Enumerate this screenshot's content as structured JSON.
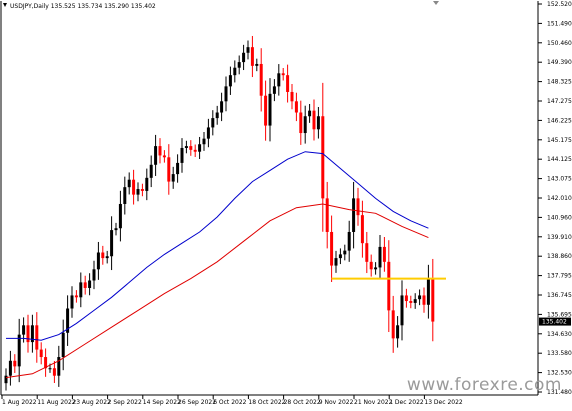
{
  "window": {
    "symbol_info": "USDJPY,Daily  135.525 135.734 135.290 135.402"
  },
  "watermark": "www.forexre.com",
  "chart_data": {
    "type": "candlestick",
    "title": "USDJPY,Daily",
    "ohlc_header": [
      "135.525",
      "135.734",
      "135.290",
      "135.402"
    ],
    "ylim": [
      131.52,
      152.52
    ],
    "y_ticks": [
      "152.520",
      "151.490",
      "150.460",
      "149.390",
      "148.325",
      "147.275",
      "146.225",
      "145.175",
      "144.125",
      "143.075",
      "142.010",
      "140.960",
      "139.910",
      "138.860",
      "137.795",
      "136.745",
      "135.695",
      "134.630",
      "133.580",
      "132.530",
      "131.480"
    ],
    "x_ticks": [
      "1 Aug 2022",
      "11 Aug 2022",
      "23 Aug 2022",
      "2 Sep 2022",
      "14 Sep 2022",
      "26 Sep 2022",
      "6 Oct 2022",
      "18 Oct 2022",
      "28 Oct 2022",
      "9 Nov 2022",
      "21 Nov 2022",
      "1 Dec 2022",
      "13 Dec 2022"
    ],
    "x_tick_index": [
      0,
      8,
      16,
      24,
      32,
      40,
      48,
      56,
      64,
      72,
      80,
      88,
      96
    ],
    "current_price": "135.402",
    "support_level": 137.7,
    "up_color": "#000000",
    "down_color": "#ff0000",
    "ma_fast_color": "#0000cc",
    "ma_slow_color": "#e00000",
    "level_color": "#ffcc00",
    "closes": [
      132.5,
      133.3,
      133.0,
      134.7,
      135.2,
      134.3,
      135.2,
      133.9,
      133.5,
      132.9,
      132.9,
      132.5,
      133.5,
      134.8,
      136.1,
      136.8,
      136.7,
      137.5,
      137.2,
      137.6,
      138.2,
      139.1,
      138.8,
      138.9,
      140.3,
      140.4,
      141.7,
      142.6,
      143.0,
      142.2,
      142.5,
      142.4,
      143.1,
      143.8,
      144.8,
      144.3,
      144.2,
      142.9,
      143.3,
      143.9,
      144.7,
      144.8,
      144.6,
      144.5,
      144.9,
      145.2,
      145.8,
      146.3,
      146.6,
      147.2,
      148.0,
      148.6,
      149.0,
      149.3,
      149.8,
      150.1,
      149.1,
      149.2,
      147.5,
      145.9,
      147.6,
      148.0,
      148.7,
      148.6,
      147.7,
      147.2,
      146.6,
      145.5,
      146.4,
      146.7,
      145.7,
      146.4,
      142.0,
      140.2,
      138.4,
      138.8,
      139.0,
      139.2,
      140.2,
      142.0,
      141.1,
      139.6,
      138.6,
      138.2,
      138.3,
      139.4,
      138.6,
      136.0,
      134.5,
      135.2,
      136.8,
      136.5,
      136.4,
      136.6,
      136.8,
      136.3,
      137.7,
      135.4
    ],
    "ma_fast": [
      {
        "i": 0,
        "v": 134.5
      },
      {
        "i": 4,
        "v": 134.5
      },
      {
        "i": 8,
        "v": 134.4
      },
      {
        "i": 12,
        "v": 134.7
      },
      {
        "i": 16,
        "v": 135.3
      },
      {
        "i": 20,
        "v": 136.0
      },
      {
        "i": 24,
        "v": 136.7
      },
      {
        "i": 28,
        "v": 137.5
      },
      {
        "i": 32,
        "v": 138.3
      },
      {
        "i": 36,
        "v": 139.0
      },
      {
        "i": 40,
        "v": 139.6
      },
      {
        "i": 44,
        "v": 140.2
      },
      {
        "i": 48,
        "v": 141.0
      },
      {
        "i": 52,
        "v": 142.0
      },
      {
        "i": 56,
        "v": 142.9
      },
      {
        "i": 60,
        "v": 143.5
      },
      {
        "i": 64,
        "v": 144.1
      },
      {
        "i": 68,
        "v": 144.5
      },
      {
        "i": 72,
        "v": 144.4
      },
      {
        "i": 76,
        "v": 143.6
      },
      {
        "i": 80,
        "v": 142.8
      },
      {
        "i": 84,
        "v": 142.0
      },
      {
        "i": 88,
        "v": 141.3
      },
      {
        "i": 92,
        "v": 140.8
      },
      {
        "i": 96,
        "v": 140.4
      }
    ],
    "ma_slow": [
      {
        "i": 0,
        "v": 132.4
      },
      {
        "i": 6,
        "v": 132.6
      },
      {
        "i": 12,
        "v": 133.3
      },
      {
        "i": 18,
        "v": 134.2
      },
      {
        "i": 24,
        "v": 135.1
      },
      {
        "i": 30,
        "v": 136.0
      },
      {
        "i": 36,
        "v": 136.9
      },
      {
        "i": 42,
        "v": 137.7
      },
      {
        "i": 48,
        "v": 138.6
      },
      {
        "i": 54,
        "v": 139.7
      },
      {
        "i": 60,
        "v": 140.8
      },
      {
        "i": 66,
        "v": 141.5
      },
      {
        "i": 72,
        "v": 141.7
      },
      {
        "i": 78,
        "v": 141.4
      },
      {
        "i": 84,
        "v": 141.2
      },
      {
        "i": 90,
        "v": 140.5
      },
      {
        "i": 96,
        "v": 139.9
      }
    ]
  }
}
